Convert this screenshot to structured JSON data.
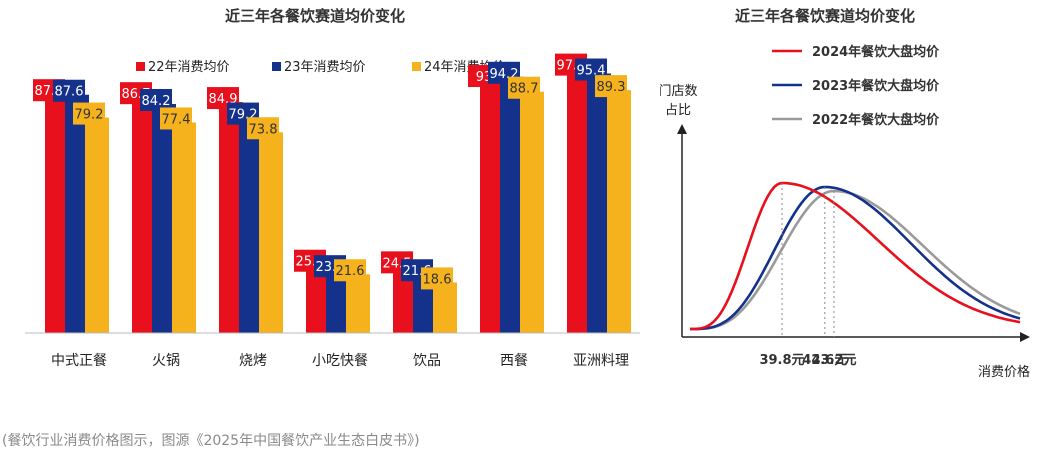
{
  "caption": "(餐饮行业消费价格图示，图源《2025年中国餐饮产业生态白皮书》)",
  "colors": {
    "red": "#e8101c",
    "blue": "#14318c",
    "yellow": "#f5b21d",
    "gray": "#9a9a9a"
  },
  "chart_data": [
    {
      "type": "bar",
      "title": "近三年各餐饮赛道均价变化",
      "categories": [
        "中式正餐",
        "火锅",
        "烧烤",
        "小吃快餐",
        "饮品",
        "西餐",
        "亚洲料理"
      ],
      "series": [
        {
          "name": "22年消费均价",
          "color": "#e8101c",
          "values": [
            87.8,
            86.7,
            84.9,
            25.1,
            24.5,
            93,
            97.2
          ]
        },
        {
          "name": "23年消费均价",
          "color": "#14318c",
          "values": [
            87.6,
            84.2,
            79.2,
            23.1,
            21.6,
            94.2,
            95.4
          ]
        },
        {
          "name": "24年消费均价",
          "color": "#f5b21d",
          "values": [
            79.2,
            77.4,
            73.8,
            21.6,
            18.6,
            88.7,
            89.3
          ]
        }
      ],
      "legend_position": "top",
      "ylim": [
        0,
        100
      ],
      "grid": false
    },
    {
      "type": "line",
      "title": "近三年各餐饮赛道均价变化",
      "xlabel": "消费价格",
      "ylabel": "门店数占比",
      "series": [
        {
          "name": "2024年餐饮大盘均价",
          "color": "#e8101c",
          "peak": 39.8,
          "peak_label": "39.8元"
        },
        {
          "name": "2023年餐饮大盘均价",
          "color": "#14318c",
          "peak": 42.6,
          "peak_label": "42.6元"
        },
        {
          "name": "2022年餐饮大盘均价",
          "color": "#9a9a9a",
          "peak": 43.2,
          "peak_label": "43.2元"
        }
      ],
      "legend_position": "top-right",
      "grid": false
    }
  ]
}
